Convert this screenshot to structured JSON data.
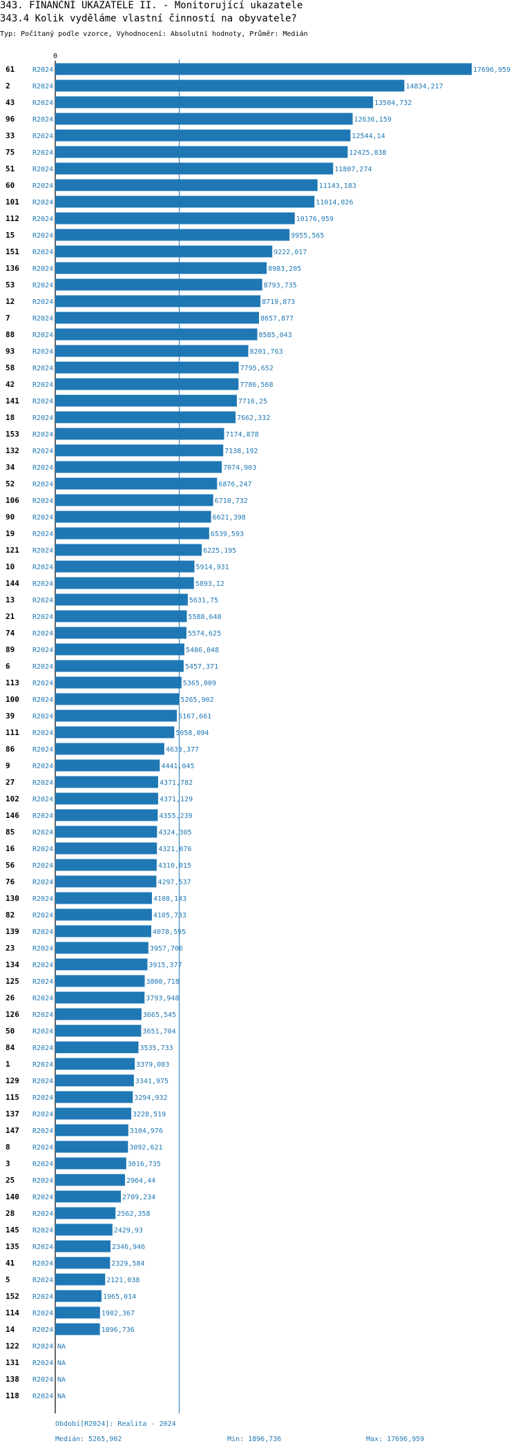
{
  "header": {
    "title": "343. FINANČNÍ UKAZATELE II. - Monitorující ukazatele",
    "subtitle": "343.4 Kolik vyděláme vlastní činností na obyvatele?",
    "meta": "Typ: Počítaný podle vzorce, Vyhodnocení: Absolutní hodnoty, Průměr: Medián"
  },
  "chart_data": {
    "type": "bar",
    "orientation": "horizontal",
    "x_axis_zero_label": "0",
    "series_label": "R2024",
    "bar_color": "#1f77b4",
    "median_line": 5265.902,
    "xlim": [
      0,
      17696.959
    ],
    "rows": [
      {
        "id": "61",
        "value": 17696.959,
        "label": "17696,959"
      },
      {
        "id": "2",
        "value": 14834.217,
        "label": "14834,217"
      },
      {
        "id": "43",
        "value": 13504.732,
        "label": "13504,732"
      },
      {
        "id": "96",
        "value": 12636.159,
        "label": "12636,159"
      },
      {
        "id": "33",
        "value": 12544.14,
        "label": "12544,14"
      },
      {
        "id": "75",
        "value": 12425.838,
        "label": "12425,838"
      },
      {
        "id": "51",
        "value": 11807.274,
        "label": "11807,274"
      },
      {
        "id": "60",
        "value": 11143.183,
        "label": "11143,183"
      },
      {
        "id": "101",
        "value": 11014.026,
        "label": "11014,026"
      },
      {
        "id": "112",
        "value": 10176.959,
        "label": "10176,959"
      },
      {
        "id": "15",
        "value": 9955.565,
        "label": "9955,565"
      },
      {
        "id": "151",
        "value": 9222.017,
        "label": "9222,017"
      },
      {
        "id": "136",
        "value": 8983.205,
        "label": "8983,205"
      },
      {
        "id": "53",
        "value": 8793.735,
        "label": "8793,735"
      },
      {
        "id": "12",
        "value": 8719.873,
        "label": "8719,873"
      },
      {
        "id": "7",
        "value": 8657.877,
        "label": "8657,877"
      },
      {
        "id": "88",
        "value": 8585.043,
        "label": "8585,043"
      },
      {
        "id": "93",
        "value": 8201.763,
        "label": "8201,763"
      },
      {
        "id": "58",
        "value": 7795.652,
        "label": "7795,652"
      },
      {
        "id": "42",
        "value": 7786.568,
        "label": "7786,568"
      },
      {
        "id": "141",
        "value": 7716.25,
        "label": "7716,25"
      },
      {
        "id": "18",
        "value": 7662.332,
        "label": "7662,332"
      },
      {
        "id": "153",
        "value": 7174.878,
        "label": "7174,878"
      },
      {
        "id": "132",
        "value": 7138.192,
        "label": "7138,192"
      },
      {
        "id": "34",
        "value": 7074.903,
        "label": "7074,903"
      },
      {
        "id": "52",
        "value": 6876.247,
        "label": "6876,247"
      },
      {
        "id": "106",
        "value": 6710.732,
        "label": "6710,732"
      },
      {
        "id": "90",
        "value": 6621.398,
        "label": "6621,398"
      },
      {
        "id": "19",
        "value": 6539.593,
        "label": "6539,593"
      },
      {
        "id": "121",
        "value": 6225.195,
        "label": "6225,195"
      },
      {
        "id": "10",
        "value": 5914.931,
        "label": "5914,931"
      },
      {
        "id": "144",
        "value": 5893.12,
        "label": "5893,12"
      },
      {
        "id": "13",
        "value": 5631.75,
        "label": "5631,75"
      },
      {
        "id": "21",
        "value": 5588.648,
        "label": "5588,648"
      },
      {
        "id": "74",
        "value": 5574.625,
        "label": "5574,625"
      },
      {
        "id": "89",
        "value": 5486.048,
        "label": "5486,048"
      },
      {
        "id": "6",
        "value": 5457.371,
        "label": "5457,371"
      },
      {
        "id": "113",
        "value": 5365.009,
        "label": "5365,009"
      },
      {
        "id": "100",
        "value": 5265.902,
        "label": "5265,902"
      },
      {
        "id": "39",
        "value": 5167.661,
        "label": "5167,661"
      },
      {
        "id": "111",
        "value": 5058.094,
        "label": "5058,094"
      },
      {
        "id": "86",
        "value": 4633.377,
        "label": "4633,377"
      },
      {
        "id": "9",
        "value": 4441.045,
        "label": "4441,045"
      },
      {
        "id": "27",
        "value": 4371.782,
        "label": "4371,782"
      },
      {
        "id": "102",
        "value": 4371.129,
        "label": "4371,129"
      },
      {
        "id": "146",
        "value": 4355.239,
        "label": "4355,239"
      },
      {
        "id": "85",
        "value": 4324.305,
        "label": "4324,305"
      },
      {
        "id": "16",
        "value": 4321.076,
        "label": "4321,076"
      },
      {
        "id": "56",
        "value": 4310.015,
        "label": "4310,015"
      },
      {
        "id": "76",
        "value": 4297.537,
        "label": "4297,537"
      },
      {
        "id": "130",
        "value": 4108.143,
        "label": "4108,143"
      },
      {
        "id": "82",
        "value": 4105.733,
        "label": "4105,733"
      },
      {
        "id": "139",
        "value": 4078.595,
        "label": "4078,595"
      },
      {
        "id": "23",
        "value": 3957.706,
        "label": "3957,706"
      },
      {
        "id": "134",
        "value": 3915.377,
        "label": "3915,377"
      },
      {
        "id": "125",
        "value": 3800.718,
        "label": "3800,718"
      },
      {
        "id": "26",
        "value": 3793.948,
        "label": "3793,948"
      },
      {
        "id": "126",
        "value": 3665.545,
        "label": "3665,545"
      },
      {
        "id": "50",
        "value": 3651.704,
        "label": "3651,704"
      },
      {
        "id": "84",
        "value": 3535.733,
        "label": "3535,733"
      },
      {
        "id": "1",
        "value": 3379.083,
        "label": "3379,083"
      },
      {
        "id": "129",
        "value": 3341.975,
        "label": "3341,975"
      },
      {
        "id": "115",
        "value": 3294.932,
        "label": "3294,932"
      },
      {
        "id": "137",
        "value": 3228.519,
        "label": "3228,519"
      },
      {
        "id": "147",
        "value": 3104.976,
        "label": "3104,976"
      },
      {
        "id": "8",
        "value": 3092.621,
        "label": "3092,621"
      },
      {
        "id": "3",
        "value": 3016.735,
        "label": "3016,735"
      },
      {
        "id": "25",
        "value": 2964.44,
        "label": "2964,44"
      },
      {
        "id": "140",
        "value": 2789.234,
        "label": "2789,234"
      },
      {
        "id": "28",
        "value": 2562.358,
        "label": "2562,358"
      },
      {
        "id": "145",
        "value": 2429.93,
        "label": "2429,93"
      },
      {
        "id": "135",
        "value": 2346.946,
        "label": "2346,946"
      },
      {
        "id": "41",
        "value": 2329.584,
        "label": "2329,584"
      },
      {
        "id": "5",
        "value": 2121.038,
        "label": "2121,038"
      },
      {
        "id": "152",
        "value": 1965.014,
        "label": "1965,014"
      },
      {
        "id": "114",
        "value": 1902.367,
        "label": "1902,367"
      },
      {
        "id": "14",
        "value": 1896.736,
        "label": "1896,736"
      },
      {
        "id": "122",
        "value": null,
        "label": "NA"
      },
      {
        "id": "131",
        "value": null,
        "label": "NA"
      },
      {
        "id": "138",
        "value": null,
        "label": "NA"
      },
      {
        "id": "118",
        "value": null,
        "label": "NA"
      }
    ]
  },
  "footer": {
    "period": "Období[R2024]: Realita - 2024",
    "median": "Medián: 5265,902",
    "min": "Min: 1896,736",
    "max": "Max: 17696,959"
  }
}
